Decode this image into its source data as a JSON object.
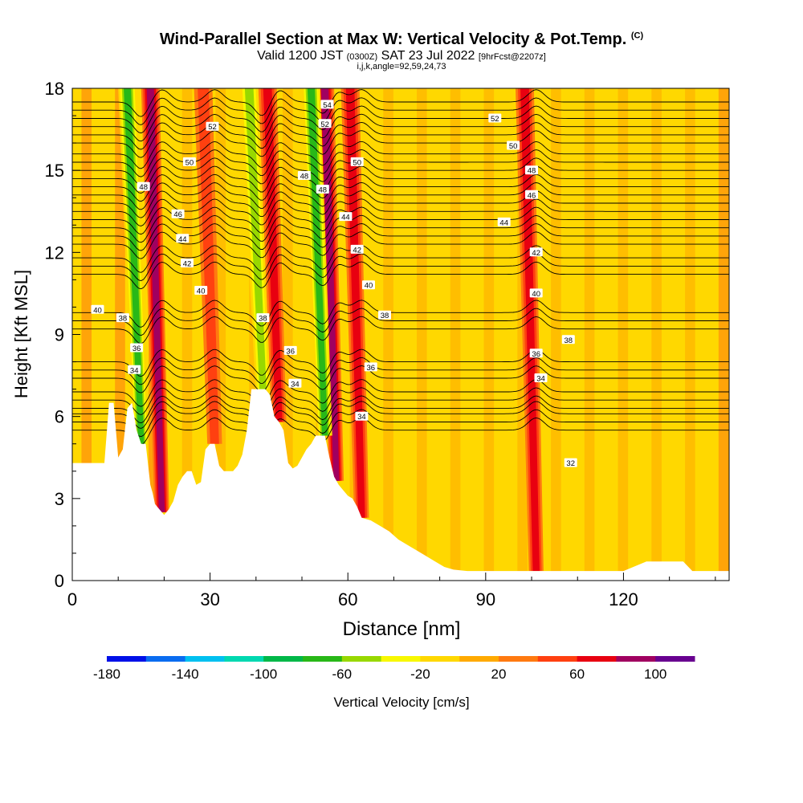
{
  "chart_data": {
    "type": "heatmap",
    "title": "Wind-Parallel Section at Max W: Vertical Velocity & Pot.Temp.",
    "title_mark": "(C)",
    "subtitle_main": "Valid 1200 JST",
    "subtitle_utc": "(0300Z)",
    "subtitle_date": "SAT 23 Jul 2022",
    "subtitle_fcst": "[9hrFcst@2207z]",
    "params_line": "i,j,k,angle=92,59,24,73",
    "xlabel": "Distance [nm]",
    "ylabel": "Height [Kft MSL]",
    "xlim": [
      0,
      143
    ],
    "ylim": [
      0,
      18
    ],
    "x_ticks": [
      0,
      30,
      60,
      90,
      120
    ],
    "y_ticks": [
      0,
      3,
      6,
      9,
      12,
      15,
      18
    ],
    "colorbar": {
      "label": "Vertical Velocity [cm/s]",
      "min": -180,
      "max": 120,
      "step": 20,
      "tick_labels": [
        -180,
        -140,
        -100,
        -60,
        -20,
        20,
        60,
        100
      ],
      "colors": [
        "#0010e8",
        "#0a6cf0",
        "#00c0f0",
        "#00d8b0",
        "#00b848",
        "#28b818",
        "#98d800",
        "#f8f800",
        "#ffd800",
        "#ffaa00",
        "#ff7a10",
        "#ff4010",
        "#e80010",
        "#a00060",
        "#680090"
      ]
    },
    "updrafts": [
      {
        "x": 19.5,
        "w": 90
      },
      {
        "x": 31,
        "w": 50
      },
      {
        "x": 45,
        "w": 70
      },
      {
        "x": 57.5,
        "w": 80
      },
      {
        "x": 63,
        "w": 60
      },
      {
        "x": 101,
        "w": 70
      }
    ],
    "downdrafts": [
      {
        "x": 15,
        "w": -90
      },
      {
        "x": 41.5,
        "w": -70
      },
      {
        "x": 55,
        "w": -90
      }
    ],
    "terrain": [
      [
        0,
        4.3
      ],
      [
        7,
        4.3
      ],
      [
        8,
        6.5
      ],
      [
        9,
        6.5
      ],
      [
        10,
        4.5
      ],
      [
        11,
        4.8
      ],
      [
        12,
        6.3
      ],
      [
        13,
        6.5
      ],
      [
        14,
        5.5
      ],
      [
        15,
        5
      ],
      [
        16,
        5
      ],
      [
        17,
        3.5
      ],
      [
        17.5,
        3.2
      ],
      [
        18,
        2.8
      ],
      [
        19,
        2.6
      ],
      [
        20,
        2.4
      ],
      [
        21,
        2.6
      ],
      [
        22,
        2.9
      ],
      [
        23,
        3.5
      ],
      [
        24,
        3.8
      ],
      [
        25,
        4
      ],
      [
        26,
        4
      ],
      [
        27,
        3.5
      ],
      [
        28,
        3.6
      ],
      [
        29,
        4.8
      ],
      [
        30,
        5
      ],
      [
        31,
        5
      ],
      [
        32,
        4.2
      ],
      [
        33,
        4
      ],
      [
        34,
        4
      ],
      [
        35,
        4
      ],
      [
        36,
        4.2
      ],
      [
        37,
        4.6
      ],
      [
        38,
        5.5
      ],
      [
        39,
        7
      ],
      [
        40,
        7
      ],
      [
        41,
        7
      ],
      [
        42,
        7
      ],
      [
        43,
        6.8
      ],
      [
        44,
        6
      ],
      [
        45,
        5.8
      ],
      [
        46,
        5.5
      ],
      [
        47,
        4.3
      ],
      [
        48,
        4.1
      ],
      [
        49,
        4.2
      ],
      [
        50,
        4.5
      ],
      [
        51,
        4.8
      ],
      [
        52,
        5
      ],
      [
        53,
        5.3
      ],
      [
        54,
        5.3
      ],
      [
        55,
        5.3
      ],
      [
        56,
        4.5
      ],
      [
        57,
        3.8
      ],
      [
        58,
        3.5
      ],
      [
        59,
        3.3
      ],
      [
        60,
        3.1
      ],
      [
        61,
        3
      ],
      [
        62,
        2.7
      ],
      [
        63,
        2.3
      ],
      [
        65,
        2.2
      ],
      [
        67,
        2
      ],
      [
        69,
        1.8
      ],
      [
        71,
        1.5
      ],
      [
        73,
        1.3
      ],
      [
        75,
        1.1
      ],
      [
        77,
        0.9
      ],
      [
        79,
        0.7
      ],
      [
        81,
        0.5
      ],
      [
        83,
        0.4
      ],
      [
        86,
        0.35
      ],
      [
        95,
        0.35
      ],
      [
        110,
        0.35
      ],
      [
        120,
        0.35
      ],
      [
        125,
        0.7
      ],
      [
        133,
        0.7
      ],
      [
        135,
        0.35
      ],
      [
        143,
        0.35
      ]
    ],
    "theta_contours": [
      {
        "label": "34",
        "h": 6.1
      },
      {
        "label": "36",
        "h": 6.9
      },
      {
        "label": "38",
        "h": 8.0
      },
      {
        "label": "40",
        "h": 9.8
      },
      {
        "label": "42",
        "h": 11.8
      },
      {
        "label": "44",
        "h": 12.9
      },
      {
        "label": "46",
        "h": 13.8
      },
      {
        "label": "48",
        "h": 14.7
      },
      {
        "label": "50",
        "h": 15.6
      },
      {
        "label": "52",
        "h": 16.6
      },
      {
        "label": "54",
        "h": 17.5
      }
    ],
    "contour_labels": [
      {
        "text": "52",
        "x": 30.5,
        "y": 16.6
      },
      {
        "text": "50",
        "x": 25.5,
        "y": 15.3
      },
      {
        "text": "48",
        "x": 15.5,
        "y": 14.4
      },
      {
        "text": "46",
        "x": 23.0,
        "y": 13.4
      },
      {
        "text": "44",
        "x": 24.0,
        "y": 12.5
      },
      {
        "text": "42",
        "x": 25.0,
        "y": 11.6
      },
      {
        "text": "40",
        "x": 28.0,
        "y": 10.6
      },
      {
        "text": "40",
        "x": 5.5,
        "y": 9.9
      },
      {
        "text": "38",
        "x": 11.0,
        "y": 9.6
      },
      {
        "text": "36",
        "x": 14.0,
        "y": 8.5
      },
      {
        "text": "34",
        "x": 13.5,
        "y": 7.7
      },
      {
        "text": "38",
        "x": 41.5,
        "y": 9.6
      },
      {
        "text": "48",
        "x": 50.5,
        "y": 14.8
      },
      {
        "text": "48",
        "x": 54.5,
        "y": 14.3
      },
      {
        "text": "44",
        "x": 59.5,
        "y": 13.3
      },
      {
        "text": "42",
        "x": 62.0,
        "y": 12.1
      },
      {
        "text": "40",
        "x": 64.5,
        "y": 10.8
      },
      {
        "text": "38",
        "x": 68.0,
        "y": 9.7
      },
      {
        "text": "36",
        "x": 47.5,
        "y": 8.4
      },
      {
        "text": "34",
        "x": 48.5,
        "y": 7.2
      },
      {
        "text": "36",
        "x": 65.0,
        "y": 7.8
      },
      {
        "text": "34",
        "x": 63.0,
        "y": 6.0
      },
      {
        "text": "54",
        "x": 55.5,
        "y": 17.4
      },
      {
        "text": "52",
        "x": 55.0,
        "y": 16.7
      },
      {
        "text": "50",
        "x": 62.0,
        "y": 15.3
      },
      {
        "text": "52",
        "x": 92.0,
        "y": 16.9
      },
      {
        "text": "50",
        "x": 96.0,
        "y": 15.9
      },
      {
        "text": "48",
        "x": 100.0,
        "y": 15.0
      },
      {
        "text": "46",
        "x": 100.0,
        "y": 14.1
      },
      {
        "text": "44",
        "x": 94.0,
        "y": 13.1
      },
      {
        "text": "42",
        "x": 101.0,
        "y": 12.0
      },
      {
        "text": "40",
        "x": 101.0,
        "y": 10.5
      },
      {
        "text": "38",
        "x": 108.0,
        "y": 8.8
      },
      {
        "text": "36",
        "x": 101.0,
        "y": 8.3
      },
      {
        "text": "34",
        "x": 102.0,
        "y": 7.4
      },
      {
        "text": "32",
        "x": 108.5,
        "y": 4.3
      }
    ]
  }
}
